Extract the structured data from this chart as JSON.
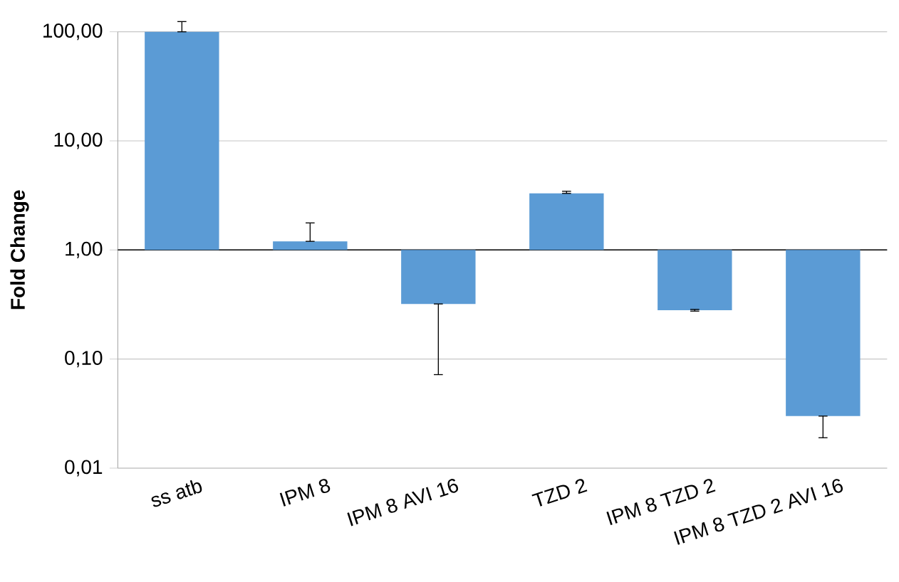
{
  "chart_data": {
    "type": "bar",
    "ylabel": "Fold Change",
    "categories": [
      "ss atb",
      "IPM 8",
      "IPM 8 AVI 16",
      "TZD 2",
      "IPM 8 TZD 2",
      "IPM 8 TZD 2 AVI 16"
    ],
    "base": [
      1,
      1,
      1,
      1,
      1,
      1
    ],
    "values": [
      99,
      0.2,
      -0.68,
      2.3,
      -0.72,
      -0.97
    ],
    "errors": [
      [
        100,
        124
      ],
      [
        1.2,
        1.77
      ],
      [
        0.072,
        0.32
      ],
      [
        3.3,
        3.45
      ],
      [
        0.275,
        0.285
      ],
      [
        0.019,
        0.03
      ]
    ],
    "color": "#5b9bd5",
    "log": "y",
    "grid": "y",
    "ylim": [
      0.01,
      100
    ],
    "yticks": [
      {
        "value": 0.01,
        "label": "0,01"
      },
      {
        "value": 0.1,
        "label": "0,10"
      },
      {
        "value": 1,
        "label": "1,00"
      },
      {
        "value": 10,
        "label": "10,00"
      },
      {
        "value": 100,
        "label": "100,00"
      }
    ],
    "ref_lines": [
      {
        "axis": "y",
        "value": 1,
        "color": "#000000"
      }
    ]
  }
}
